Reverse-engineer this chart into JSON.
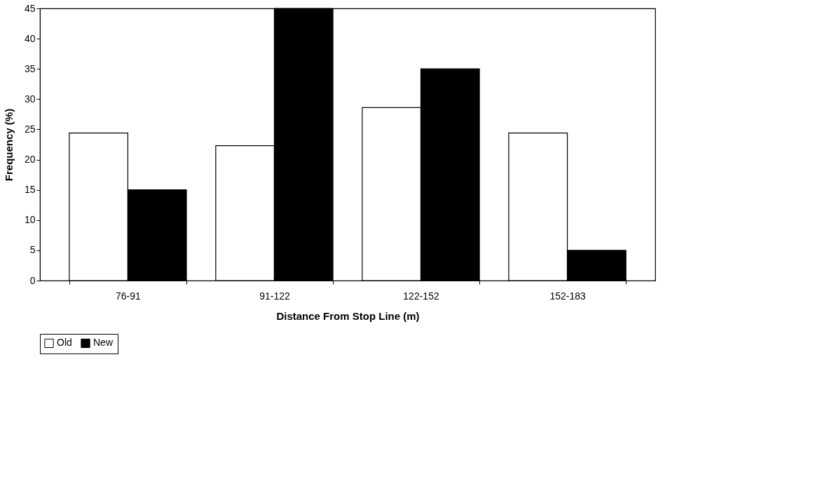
{
  "chart_data": {
    "type": "bar",
    "xlabel": "Distance From Stop Line (m)",
    "ylabel": "Frequency (%)",
    "categories": [
      "76-91",
      "91-122",
      "122-152",
      "152-183"
    ],
    "series": [
      {
        "name": "Old",
        "color": "#ffffff",
        "values": [
          24.4,
          22.3,
          28.6,
          24.4
        ]
      },
      {
        "name": "New",
        "color": "#000000",
        "values": [
          15,
          45,
          35,
          5
        ]
      }
    ],
    "ylim": [
      0,
      45
    ],
    "yticks": [
      0,
      5,
      10,
      15,
      20,
      25,
      30,
      35,
      40,
      45
    ],
    "grid": false,
    "legend": "bottom"
  }
}
